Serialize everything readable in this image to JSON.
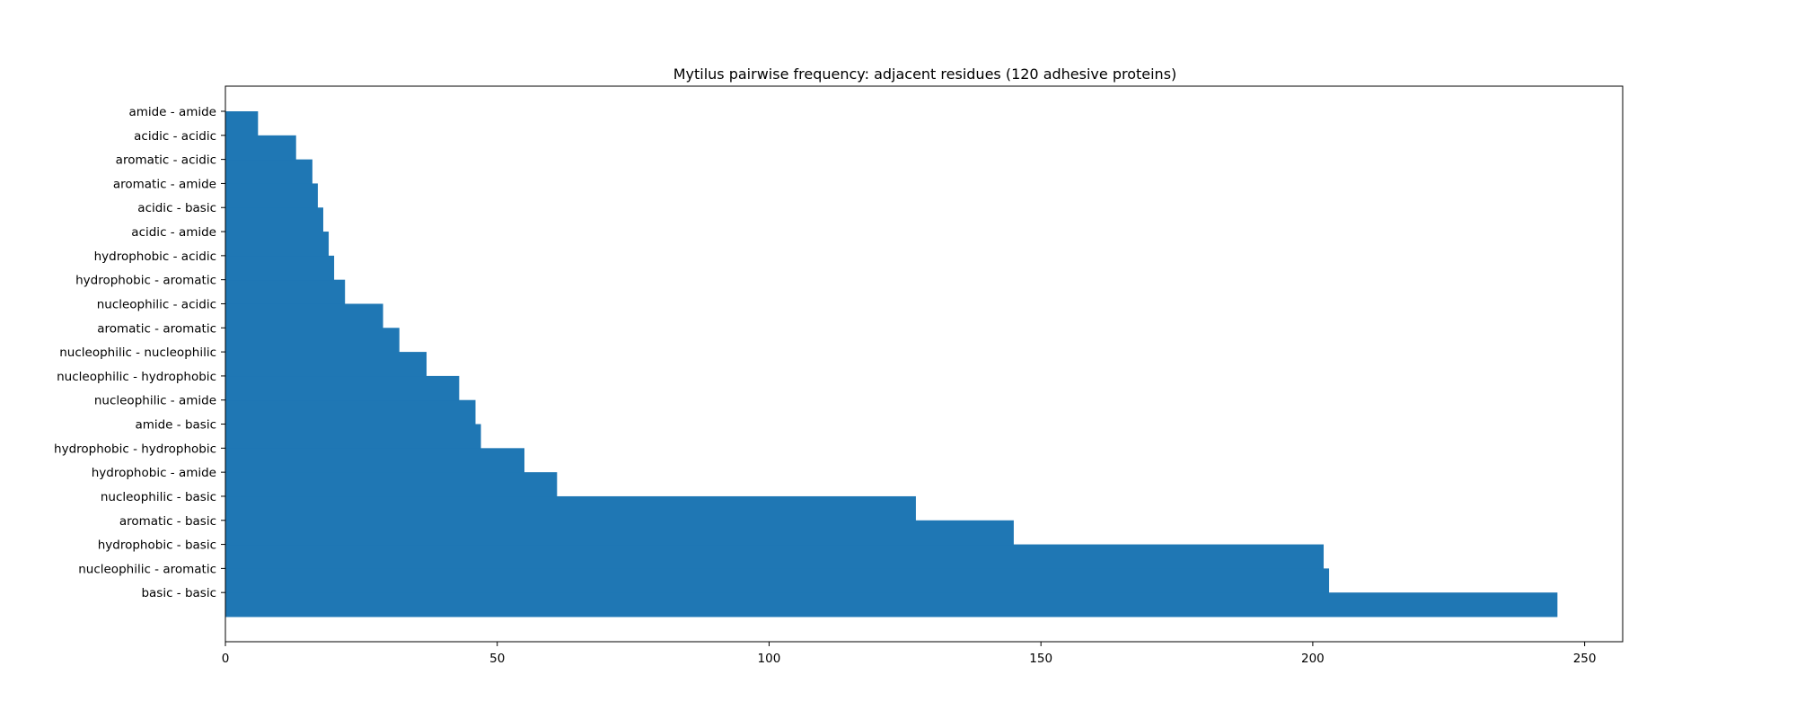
{
  "chart_data": {
    "type": "bar",
    "orientation": "horizontal",
    "title": "Mytilus pairwise frequency: adjacent residues (120 adhesive proteins)",
    "xlabel": "",
    "ylabel": "",
    "xlim": [
      0,
      257
    ],
    "xticks": [
      0,
      50,
      100,
      150,
      200,
      250
    ],
    "xtick_labels": [
      "0",
      "50",
      "100",
      "150",
      "200",
      "250"
    ],
    "grid": false,
    "legend": "none",
    "bar_color": "#1f77b4",
    "categories": [
      "basic - basic",
      "nucleophilic - aromatic",
      "hydrophobic - basic",
      "aromatic - basic",
      "nucleophilic - basic",
      "hydrophobic - amide",
      "hydrophobic - hydrophobic",
      "amide - basic",
      "nucleophilic - amide",
      "nucleophilic - hydrophobic",
      "nucleophilic - nucleophilic",
      "aromatic - aromatic",
      "nucleophilic - acidic",
      "hydrophobic - aromatic",
      "hydrophobic - acidic",
      "acidic - amide",
      "acidic - basic",
      "aromatic - amide",
      "aromatic - acidic",
      "acidic - acidic",
      "amide - amide"
    ],
    "values": [
      245,
      203,
      202,
      145,
      127,
      61,
      55,
      47,
      46,
      43,
      37,
      32,
      29,
      22,
      20,
      19,
      18,
      17,
      16,
      13,
      6
    ]
  }
}
